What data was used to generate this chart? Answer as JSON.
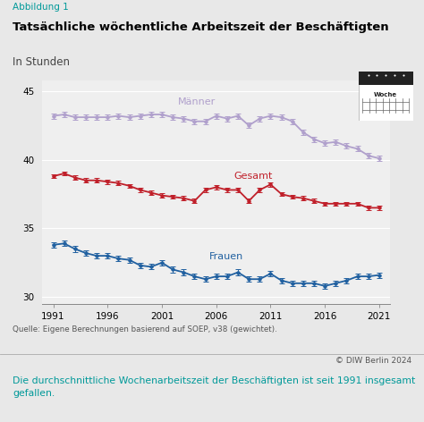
{
  "title": "Tatsächliche wöchentliche Arbeitszeit der Beschäftigten",
  "subtitle": "In Stunden",
  "abbildung": "Abbildung 1",
  "source": "Quelle: Eigene Berechnungen basierend auf SOEP, v38 (gewichtet).",
  "copyright": "© DIW Berlin 2024",
  "footnote": "Die durchschnittliche Wochenarbeitszeit der Beschäftigten ist seit 1991 insgesamt\ngefallen.",
  "bg_color": "#e8e8e8",
  "chart_bg": "#efefef",
  "years": [
    1991,
    1992,
    1993,
    1994,
    1995,
    1996,
    1997,
    1998,
    1999,
    2000,
    2001,
    2002,
    2003,
    2004,
    2005,
    2006,
    2007,
    2008,
    2009,
    2010,
    2011,
    2012,
    2013,
    2014,
    2015,
    2016,
    2017,
    2018,
    2019,
    2020,
    2021
  ],
  "maenner": [
    43.2,
    43.3,
    43.1,
    43.1,
    43.1,
    43.1,
    43.2,
    43.1,
    43.2,
    43.3,
    43.3,
    43.1,
    43.0,
    42.8,
    42.8,
    43.2,
    43.0,
    43.2,
    42.5,
    43.0,
    43.2,
    43.1,
    42.8,
    42.0,
    41.5,
    41.2,
    41.3,
    41.0,
    40.8,
    40.3,
    40.1
  ],
  "maenner_err": [
    0.2,
    0.2,
    0.2,
    0.2,
    0.2,
    0.2,
    0.2,
    0.2,
    0.2,
    0.2,
    0.2,
    0.2,
    0.2,
    0.2,
    0.2,
    0.2,
    0.2,
    0.2,
    0.2,
    0.2,
    0.2,
    0.2,
    0.2,
    0.2,
    0.2,
    0.2,
    0.2,
    0.2,
    0.2,
    0.2,
    0.2
  ],
  "gesamt": [
    38.8,
    39.0,
    38.7,
    38.5,
    38.5,
    38.4,
    38.3,
    38.1,
    37.8,
    37.6,
    37.4,
    37.3,
    37.2,
    37.0,
    37.8,
    38.0,
    37.8,
    37.8,
    37.0,
    37.8,
    38.2,
    37.5,
    37.3,
    37.2,
    37.0,
    36.8,
    36.8,
    36.8,
    36.8,
    36.5,
    36.5
  ],
  "gesamt_err": [
    0.15,
    0.15,
    0.15,
    0.15,
    0.15,
    0.15,
    0.15,
    0.15,
    0.15,
    0.15,
    0.15,
    0.15,
    0.15,
    0.15,
    0.15,
    0.15,
    0.15,
    0.15,
    0.15,
    0.15,
    0.15,
    0.15,
    0.15,
    0.15,
    0.15,
    0.15,
    0.15,
    0.15,
    0.15,
    0.15,
    0.15
  ],
  "frauen": [
    33.8,
    33.9,
    33.5,
    33.2,
    33.0,
    33.0,
    32.8,
    32.7,
    32.3,
    32.2,
    32.5,
    32.0,
    31.8,
    31.5,
    31.3,
    31.5,
    31.5,
    31.8,
    31.3,
    31.3,
    31.7,
    31.2,
    31.0,
    31.0,
    31.0,
    30.8,
    31.0,
    31.2,
    31.5,
    31.5,
    31.6
  ],
  "frauen_err": [
    0.2,
    0.2,
    0.2,
    0.2,
    0.2,
    0.2,
    0.2,
    0.2,
    0.2,
    0.2,
    0.2,
    0.2,
    0.2,
    0.2,
    0.2,
    0.2,
    0.2,
    0.2,
    0.2,
    0.2,
    0.2,
    0.2,
    0.2,
    0.2,
    0.2,
    0.2,
    0.2,
    0.2,
    0.2,
    0.2,
    0.2
  ],
  "maenner_color": "#b0a0cc",
  "gesamt_color": "#c0202a",
  "frauen_color": "#2060a0",
  "ylim": [
    29.5,
    45.8
  ],
  "yticks": [
    30,
    35,
    40,
    45
  ],
  "xticks": [
    1991,
    1996,
    2001,
    2006,
    2011,
    2016,
    2021
  ],
  "abbildung_color": "#009999",
  "footnote_color": "#009999"
}
